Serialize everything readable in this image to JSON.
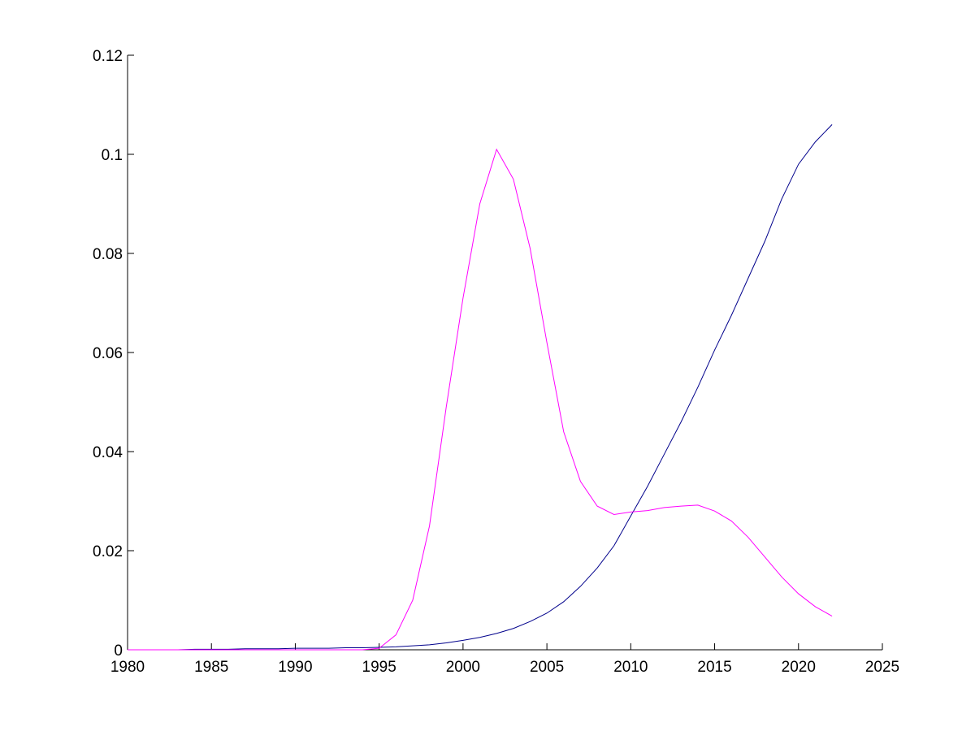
{
  "chart_data": {
    "type": "line",
    "x": [
      1980,
      1981,
      1982,
      1983,
      1984,
      1985,
      1986,
      1987,
      1988,
      1989,
      1990,
      1991,
      1992,
      1993,
      1994,
      1995,
      1996,
      1997,
      1998,
      1999,
      2000,
      2001,
      2002,
      2003,
      2004,
      2005,
      2006,
      2007,
      2008,
      2009,
      2010,
      2011,
      2012,
      2013,
      2014,
      2015,
      2016,
      2017,
      2018,
      2019,
      2020,
      2021,
      2022
    ],
    "series": [
      {
        "color": "#00008b",
        "values": [
          0,
          0,
          0,
          0,
          0.0001,
          0.0001,
          0.0001,
          0.0002,
          0.0002,
          0.0002,
          0.0003,
          0.0003,
          0.0003,
          0.0004,
          0.0004,
          0.0005,
          0.0006,
          0.0008,
          0.001,
          0.0014,
          0.0019,
          0.0025,
          0.0033,
          0.0043,
          0.0057,
          0.0074,
          0.0097,
          0.0128,
          0.0165,
          0.021,
          0.027,
          0.033,
          0.0395,
          0.046,
          0.053,
          0.0605,
          0.0675,
          0.075,
          0.0825,
          0.091,
          0.098,
          0.1025,
          0.106
        ]
      },
      {
        "color": "#ff00ff",
        "values": [
          0,
          0,
          0,
          0,
          0,
          0,
          0,
          0,
          0,
          0,
          0,
          0,
          0,
          0,
          0,
          0.0003,
          0.003,
          0.01,
          0.025,
          0.049,
          0.071,
          0.09,
          0.101,
          0.095,
          0.081,
          0.062,
          0.044,
          0.034,
          0.029,
          0.0273,
          0.0278,
          0.0281,
          0.0287,
          0.029,
          0.0292,
          0.028,
          0.026,
          0.0227,
          0.0187,
          0.0147,
          0.0113,
          0.0087,
          0.0068
        ]
      }
    ],
    "xlim": [
      1980,
      2025
    ],
    "xticks": [
      1980,
      1985,
      1990,
      1995,
      2000,
      2005,
      2010,
      2015,
      2020,
      2025
    ],
    "ylim": [
      0,
      0.12
    ],
    "yticks": [
      0,
      0.02,
      0.04,
      0.06,
      0.08,
      0.1,
      0.12
    ],
    "grid": false
  }
}
